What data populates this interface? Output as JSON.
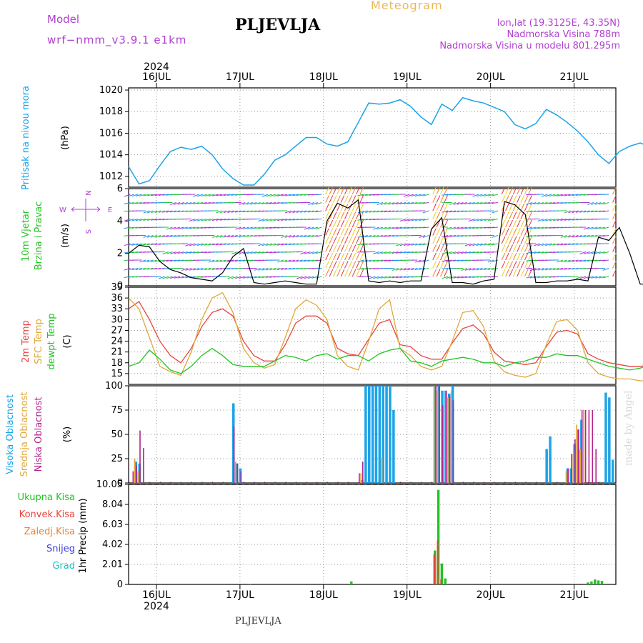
{
  "header": {
    "model_label": "Model",
    "model_name": "wrf−nmm_v3.9.1  e1km",
    "station": "PLJEVLJA",
    "meteogram": "Meteogram",
    "lonlat": "lon,lat (19.3125E, 43.35N)",
    "elevation": "Nadmorska Visina 788m",
    "model_elevation": "Nadmorska Visina u modelu 801.295m",
    "footer_station": "PLJEVLJA",
    "watermark": "made by Angel"
  },
  "colors": {
    "pressure": "#1ca3e8",
    "wind_speed": "#000000",
    "temp2m": "#e8433c",
    "sfc_temp": "#e0a83a",
    "dewpoint": "#22c422",
    "high_cloud": "#1ca3e8",
    "mid_cloud": "#e0a83a",
    "low_cloud": "#b4248c",
    "precip_total": "#22c422",
    "precip_conv": "#e8433c",
    "precip_frz": "#f08030",
    "snow": "#4040e0",
    "hail": "#20c0c0",
    "grid": "#999999",
    "purple_text": "#b040d0",
    "orange_text": "#e0b040"
  },
  "time_axis": {
    "year": "2024",
    "days": [
      "16JUL",
      "17JUL",
      "18JUL",
      "19JUL",
      "20JUL",
      "21JUL"
    ],
    "start_hours_before_16jul": 8,
    "end_hours_after_21jul": 12
  },
  "chart_data": [
    {
      "id": "pressure",
      "type": "line",
      "ylabel": [
        "Pritisak  na  nivou  mora",
        "(hPa)"
      ],
      "ylim": [
        1011,
        1020.2
      ],
      "yticks": [
        1012,
        1014,
        1016,
        1018,
        1020
      ],
      "series": [
        {
          "name": "Pritisak na nivou mora",
          "x": [
            0,
            3,
            6,
            9,
            12,
            15,
            18,
            21,
            24,
            27,
            30,
            33,
            36,
            39,
            42,
            45,
            48,
            51,
            54,
            57,
            60,
            63,
            66,
            69,
            72,
            75,
            78,
            81,
            84,
            87,
            90,
            93,
            96,
            99,
            102,
            105,
            108,
            111,
            114,
            117,
            120,
            123,
            126,
            129,
            132,
            135,
            138,
            141,
            144,
            147,
            150,
            153,
            156,
            159,
            162
          ],
          "y": [
            1012.9,
            1011.3,
            1011.6,
            1013.0,
            1014.3,
            1014.7,
            1014.5,
            1014.8,
            1014.0,
            1012.7,
            1011.8,
            1011.2,
            1011.2,
            1012.2,
            1013.5,
            1014.0,
            1014.8,
            1015.6,
            1015.6,
            1015.0,
            1014.8,
            1015.2,
            1017.0,
            1018.8,
            1018.7,
            1018.8,
            1019.1,
            1018.5,
            1017.5,
            1016.8,
            1018.7,
            1018.1,
            1019.3,
            1019.0,
            1018.8,
            1018.4,
            1018.0,
            1016.8,
            1016.4,
            1016.9,
            1018.2,
            1017.7,
            1017.0,
            1016.2,
            1015.2,
            1014.0,
            1013.2,
            1014.3,
            1014.8,
            1015.1,
            1014.7,
            1014.3,
            1013.2,
            1012.2,
            1011.0
          ]
        }
      ]
    },
    {
      "id": "wind",
      "type": "line",
      "ylabel": [
        "10m  Vjetar",
        "Brzina i Pravac",
        "(m/s)"
      ],
      "ylim": [
        0,
        6
      ],
      "yticks": [
        0,
        2,
        4,
        6
      ],
      "compass": {
        "n": "N",
        "e": "E",
        "w": "W",
        "s": "S"
      },
      "series": [
        {
          "name": "Brzina",
          "x": [
            0,
            3,
            6,
            9,
            12,
            15,
            18,
            21,
            24,
            27,
            30,
            33,
            36,
            39,
            42,
            45,
            48,
            51,
            54,
            57,
            60,
            63,
            66,
            69,
            72,
            75,
            78,
            81,
            84,
            87,
            90,
            93,
            96,
            99,
            102,
            105,
            108,
            111,
            114,
            117,
            120,
            123,
            126,
            129,
            132,
            135,
            138,
            141,
            144,
            147,
            150,
            153,
            156,
            159,
            162
          ],
          "y": [
            2.0,
            2.5,
            2.4,
            1.5,
            1.0,
            0.8,
            0.5,
            0.4,
            0.3,
            0.8,
            1.8,
            2.3,
            0.2,
            0.1,
            0.2,
            0.3,
            0.2,
            0.1,
            0.1,
            4.0,
            5.1,
            4.8,
            5.3,
            0.3,
            0.2,
            0.3,
            0.2,
            0.3,
            0.3,
            3.5,
            4.2,
            0.2,
            0.2,
            0.1,
            0.3,
            0.4,
            5.2,
            5.0,
            4.4,
            0.2,
            0.2,
            0.3,
            0.3,
            0.4,
            0.3,
            3.0,
            2.8,
            3.6,
            2.0,
            0.1,
            0.1,
            0.2,
            0.3,
            0.6,
            1.2
          ]
        }
      ]
    },
    {
      "id": "temperature",
      "type": "line",
      "ylabel": [
        "2m  Temp",
        "SFC  Temp",
        "dewpt  Temp",
        "(C)"
      ],
      "ylim": [
        12,
        39
      ],
      "yticks": [
        15,
        18,
        21,
        24,
        27,
        30,
        33,
        36,
        39
      ],
      "series": [
        {
          "name": "2m Temp",
          "x": [
            0,
            3,
            6,
            9,
            12,
            15,
            18,
            21,
            24,
            27,
            30,
            33,
            36,
            39,
            42,
            45,
            48,
            51,
            54,
            57,
            60,
            63,
            66,
            69,
            72,
            75,
            78,
            81,
            84,
            87,
            90,
            93,
            96,
            99,
            102,
            105,
            108,
            111,
            114,
            117,
            120,
            123,
            126,
            129,
            132,
            135,
            138,
            141,
            144,
            147,
            150,
            153,
            156,
            159,
            162
          ],
          "y": [
            33.0,
            35.0,
            30.0,
            24.0,
            20.0,
            18.0,
            22.0,
            28.0,
            32.0,
            33.0,
            31.0,
            24.0,
            20.0,
            18.5,
            18.5,
            23.0,
            29.0,
            31.0,
            31.0,
            29.0,
            22.0,
            20.5,
            20.0,
            24.5,
            29.0,
            30.0,
            23.0,
            22.5,
            20.0,
            19.0,
            19.0,
            23.5,
            27.5,
            28.5,
            26.0,
            21.0,
            18.5,
            18.0,
            17.5,
            18.0,
            22.5,
            26.5,
            27.0,
            26.0,
            20.5,
            19.0,
            18.0,
            17.5,
            17.0,
            17.0,
            17.5,
            17.5,
            18.0,
            22.0,
            29.0
          ]
        },
        {
          "name": "SFC Temp",
          "x": [
            0,
            3,
            6,
            9,
            12,
            15,
            18,
            21,
            24,
            27,
            30,
            33,
            36,
            39,
            42,
            45,
            48,
            51,
            54,
            57,
            60,
            63,
            66,
            69,
            72,
            75,
            78,
            81,
            84,
            87,
            90,
            93,
            96,
            99,
            102,
            105,
            108,
            111,
            114,
            117,
            120,
            123,
            126,
            129,
            132,
            135,
            138,
            141,
            144,
            147,
            150,
            153,
            156,
            159,
            162
          ],
          "y": [
            36.0,
            33.0,
            25.0,
            17.0,
            15.5,
            14.5,
            21.0,
            30.0,
            36.0,
            37.5,
            32.0,
            22.0,
            18.0,
            16.5,
            17.5,
            25.0,
            33.0,
            35.5,
            34.0,
            30.0,
            20.0,
            17.0,
            16.0,
            24.0,
            33.0,
            35.5,
            22.0,
            20.0,
            17.0,
            16.0,
            17.0,
            24.0,
            32.0,
            32.5,
            28.0,
            18.5,
            15.5,
            14.5,
            14.0,
            15.0,
            23.0,
            29.5,
            30.0,
            27.0,
            18.0,
            15.0,
            14.0,
            13.5,
            13.5,
            13.0,
            13.0,
            12.5,
            15.0,
            25.0,
            33.5
          ]
        },
        {
          "name": "dewpt Temp",
          "x": [
            0,
            3,
            6,
            9,
            12,
            15,
            18,
            21,
            24,
            27,
            30,
            33,
            36,
            39,
            42,
            45,
            48,
            51,
            54,
            57,
            60,
            63,
            66,
            69,
            72,
            75,
            78,
            81,
            84,
            87,
            90,
            93,
            96,
            99,
            102,
            105,
            108,
            111,
            114,
            117,
            120,
            123,
            126,
            129,
            132,
            135,
            138,
            141,
            144,
            147,
            150,
            153,
            156,
            159,
            162
          ],
          "y": [
            17.0,
            18.0,
            21.5,
            19.0,
            16.0,
            15.0,
            17.0,
            20.0,
            22.0,
            20.0,
            17.5,
            17.0,
            17.0,
            17.0,
            18.5,
            20.0,
            19.5,
            18.5,
            20.0,
            20.5,
            19.0,
            20.0,
            20.0,
            18.5,
            20.5,
            21.5,
            22.0,
            18.5,
            18.0,
            17.0,
            18.5,
            19.0,
            19.5,
            19.0,
            18.0,
            18.0,
            17.0,
            18.0,
            18.5,
            19.5,
            19.5,
            20.5,
            20.0,
            20.0,
            19.0,
            18.0,
            17.0,
            16.5,
            16.0,
            16.5,
            17.5,
            17.0,
            17.0,
            17.5,
            15.5
          ]
        }
      ]
    },
    {
      "id": "cloud",
      "type": "bar",
      "ylabel": [
        "Visoka  Oblacnost",
        "Srednja  Oblacnost",
        "Niska  Oblacnost",
        "(%)"
      ],
      "ylim": [
        0,
        100
      ],
      "yticks": [
        0,
        25,
        50,
        75,
        100
      ],
      "series": [
        {
          "name": "Visoka Oblacnost",
          "x": [
            2,
            3,
            30,
            31,
            32,
            67,
            68,
            69,
            70,
            71,
            72,
            73,
            74,
            75,
            76,
            77,
            78,
            79,
            80,
            81,
            82,
            83,
            84,
            85,
            86,
            87,
            88,
            89,
            90,
            91,
            92,
            93,
            94,
            95,
            96,
            97,
            120,
            121,
            122,
            123,
            126,
            127,
            128,
            129,
            130,
            131,
            132,
            133,
            134,
            135,
            136,
            137,
            138,
            139,
            140,
            141
          ],
          "y": [
            22,
            20,
            82,
            20,
            15,
            3,
            100,
            100,
            100,
            100,
            100,
            100,
            100,
            100,
            75,
            0,
            0,
            0,
            0,
            0,
            0,
            0,
            0,
            0,
            0,
            0,
            100,
            100,
            95,
            95,
            92,
            100,
            0,
            0,
            0,
            0,
            35,
            48,
            0,
            0,
            15,
            15,
            40,
            55,
            65,
            0,
            0,
            0,
            0,
            0,
            0,
            93,
            88,
            24,
            0,
            0
          ]
        },
        {
          "name": "Srednja Oblacnost",
          "x": [
            2,
            3,
            30,
            31,
            67,
            68,
            69,
            70,
            71,
            72,
            73,
            74,
            75,
            76,
            88,
            89,
            90,
            91,
            92,
            93,
            120,
            121,
            126,
            127,
            128,
            129,
            130,
            131,
            132,
            133,
            134
          ],
          "y": [
            25,
            12,
            0,
            22,
            10,
            0,
            0,
            0,
            0,
            0,
            26,
            0,
            0,
            0,
            100,
            95,
            0,
            0,
            88,
            95,
            0,
            0,
            12,
            0,
            30,
            60,
            35,
            75,
            0,
            0,
            0
          ]
        },
        {
          "name": "Niska Oblacnost",
          "x": [
            1,
            2,
            3,
            4,
            30,
            31,
            32,
            66,
            67,
            68,
            69,
            70,
            71,
            88,
            89,
            90,
            91,
            92,
            93,
            126,
            127,
            128,
            129,
            130,
            131,
            132,
            133,
            134
          ],
          "y": [
            12,
            18,
            54,
            36,
            58,
            20,
            12,
            10,
            22,
            0,
            0,
            0,
            0,
            100,
            100,
            80,
            95,
            90,
            85,
            15,
            30,
            45,
            55,
            75,
            75,
            75,
            75,
            35
          ]
        }
      ]
    },
    {
      "id": "precip",
      "type": "bar",
      "ylabel": [
        "1hr  Precip  (mm)"
      ],
      "ylim": [
        0,
        10.05
      ],
      "yticks": [
        0,
        2.01,
        4.02,
        6.03,
        8.04,
        10.05
      ],
      "legend": [
        "Ukupna  Kisa",
        "Konvek.Kisa",
        "Zaledj.Kisa",
        "Snijeg",
        "Grad"
      ],
      "series": [
        {
          "name": "Ukupna Kisa",
          "x": [
            35,
            64,
            88,
            89,
            90,
            91,
            132,
            133,
            134,
            135,
            136
          ],
          "y": [
            0.05,
            0.3,
            3.4,
            9.5,
            2.1,
            0.6,
            0.2,
            0.3,
            0.5,
            0.4,
            0.35
          ]
        },
        {
          "name": "Konvek.Kisa",
          "x": [
            88,
            89,
            90
          ],
          "y": [
            3.0,
            4.4,
            0.5
          ]
        }
      ]
    }
  ]
}
